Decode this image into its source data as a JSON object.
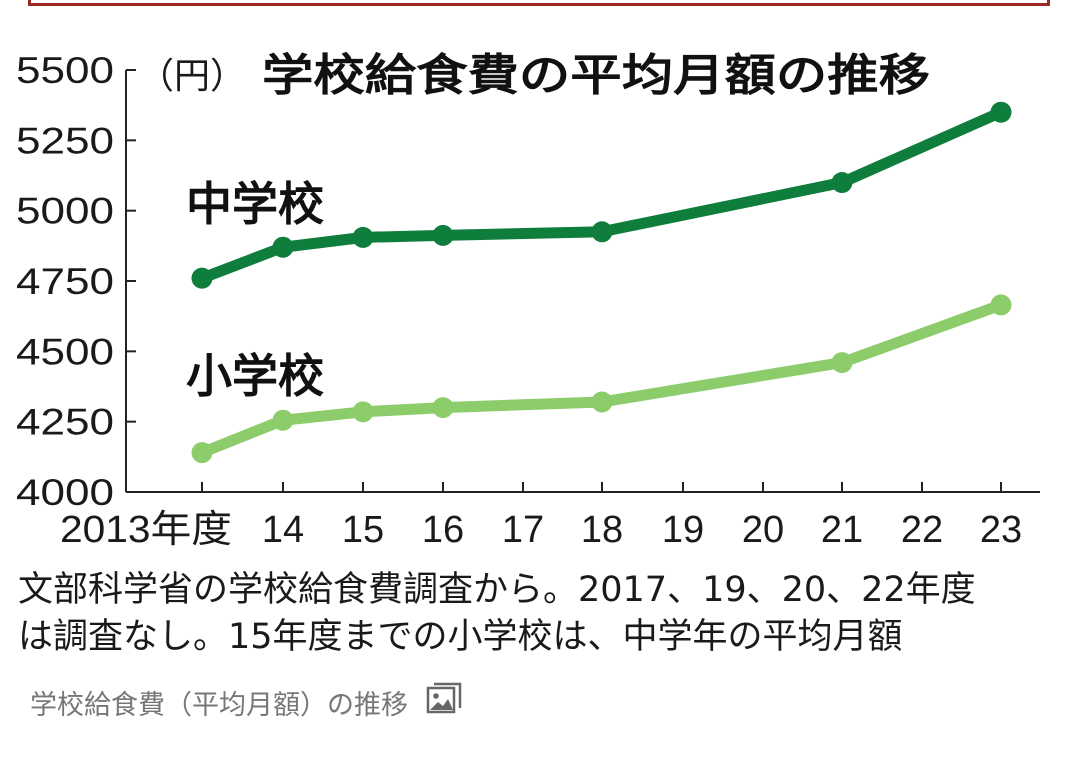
{
  "header_frame_color": "#9b2a25",
  "chart_data": {
    "type": "line",
    "title": "学校給食費の平均月額の推移",
    "unit_label": "（円）",
    "categories": [
      "2013年度",
      "14",
      "15",
      "16",
      "17",
      "18",
      "19",
      "20",
      "21",
      "22",
      "23"
    ],
    "x": [
      2013,
      2014,
      2015,
      2016,
      2018,
      2021,
      2023
    ],
    "y_ticks": [
      "5500",
      "5250",
      "5000",
      "4750",
      "4500",
      "4250",
      "4000"
    ],
    "ylim": [
      4000,
      5500
    ],
    "xlim": [
      2013,
      2023
    ],
    "grid": false,
    "series": [
      {
        "name": "中学校",
        "color": "#0f7d3c",
        "values": [
          4760,
          4870,
          4905,
          4912,
          4925,
          5100,
          5350
        ]
      },
      {
        "name": "小学校",
        "color": "#8ccc6a",
        "values": [
          4140,
          4255,
          4285,
          4300,
          4320,
          4460,
          4665
        ]
      }
    ]
  },
  "notes": {
    "line1": "文部科学省の学校給食費調査から。2017、19、20、22年度",
    "line2": "は調査なし。15年度までの小学校は、中学年の平均月額"
  },
  "caption": {
    "text": "学校給食費（平均月額）の推移",
    "icon": "image-icon"
  }
}
